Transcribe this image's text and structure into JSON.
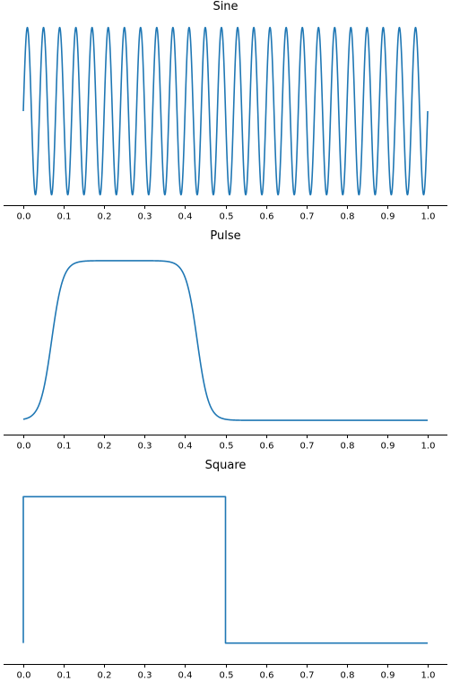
{
  "series_color": "#1f77b4",
  "chart_data": [
    {
      "type": "line",
      "title": "Sine",
      "xlim": [
        0.0,
        1.0
      ],
      "ylim": [
        -1.05,
        1.05
      ],
      "xticks": [
        "0.0",
        "0.1",
        "0.2",
        "0.3",
        "0.4",
        "0.5",
        "0.6",
        "0.7",
        "0.8",
        "0.9",
        "1.0"
      ],
      "function": {
        "kind": "sine",
        "cycles": 25,
        "amplitude": 1
      },
      "grid": false,
      "y_axis_visible": false
    },
    {
      "type": "line",
      "title": "Pulse",
      "xlim": [
        0.0,
        1.0
      ],
      "ylim": [
        -0.05,
        1.05
      ],
      "xticks": [
        "0.0",
        "0.1",
        "0.2",
        "0.3",
        "0.4",
        "0.5",
        "0.6",
        "0.7",
        "0.8",
        "0.9",
        "1.0"
      ],
      "function": {
        "kind": "pulse",
        "rise_center": 0.07,
        "fall_center": 0.43,
        "sharpness": 0.014,
        "low": 0,
        "high": 1
      },
      "grid": false,
      "y_axis_visible": false
    },
    {
      "type": "line",
      "title": "Square",
      "xlim": [
        0.0,
        1.0
      ],
      "ylim": [
        -0.1,
        1.1
      ],
      "xticks": [
        "0.0",
        "0.1",
        "0.2",
        "0.3",
        "0.4",
        "0.5",
        "0.6",
        "0.7",
        "0.8",
        "0.9",
        "1.0"
      ],
      "x": [
        0.0,
        0.0,
        0.5,
        0.5,
        1.0
      ],
      "y": [
        0,
        1,
        1,
        0,
        0
      ],
      "grid": false,
      "y_axis_visible": false
    }
  ]
}
